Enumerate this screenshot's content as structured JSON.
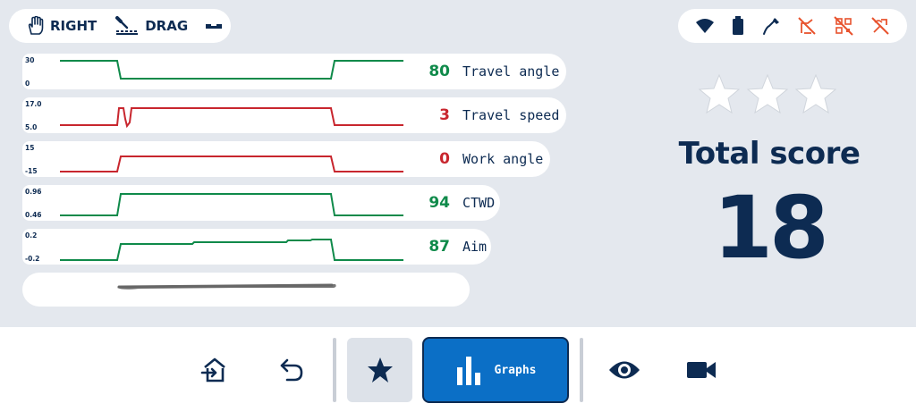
{
  "mode": {
    "hand": "RIGHT",
    "technique": "DRAG"
  },
  "status_icons": [
    "wifi-icon",
    "battery-icon",
    "torch-icon",
    "torch-off-icon",
    "qr-off-icon",
    "sensor-off-icon"
  ],
  "colors": {
    "green": "#0f8a4a",
    "red": "#c8262e",
    "navy": "#0d2b52",
    "blue": "#0b6fc6",
    "warning": "#e8532e"
  },
  "graphs": [
    {
      "label": "Travel angle",
      "value": "80",
      "status": "good",
      "y_top": "30",
      "y_bottom": "0"
    },
    {
      "label": "Travel speed",
      "value": "3",
      "status": "bad",
      "y_top": "17.0",
      "y_bottom": "5.0"
    },
    {
      "label": "Work angle",
      "value": "0",
      "status": "bad",
      "y_top": "15",
      "y_bottom": "-15"
    },
    {
      "label": "CTWD",
      "value": "94",
      "status": "good",
      "y_top": "0.96",
      "y_bottom": "0.46"
    },
    {
      "label": "Aim",
      "value": "87",
      "status": "good",
      "y_top": "0.2",
      "y_bottom": "-0.2"
    }
  ],
  "score": {
    "title": "Total score",
    "value": "18",
    "stars_total": 3,
    "stars_earned": 0
  },
  "toolbar": {
    "graphs_label": "Graphs"
  }
}
